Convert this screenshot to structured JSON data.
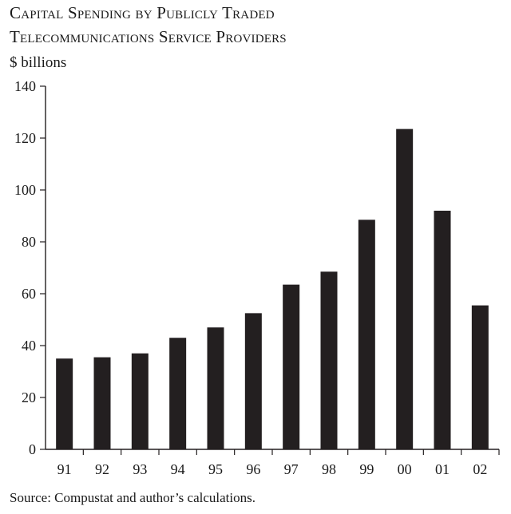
{
  "chart_data": {
    "type": "bar",
    "title": [
      "Capital Spending by Publicly Traded",
      "Telecommunications Service Providers"
    ],
    "ylabel": "$ billions",
    "xlabel": "",
    "categories": [
      "91",
      "92",
      "93",
      "94",
      "95",
      "96",
      "97",
      "98",
      "99",
      "00",
      "01",
      "02"
    ],
    "values": [
      35,
      35.5,
      37,
      43,
      47,
      52.5,
      63.5,
      68.5,
      88.5,
      123.5,
      92,
      55.5
    ],
    "ylim": [
      0,
      140
    ],
    "yticks": [
      0,
      20,
      40,
      60,
      80,
      100,
      120,
      140
    ],
    "grid": false,
    "legend": "none",
    "bar_color": "#231f20"
  },
  "source": "Source:  Compustat and author’s calculations."
}
